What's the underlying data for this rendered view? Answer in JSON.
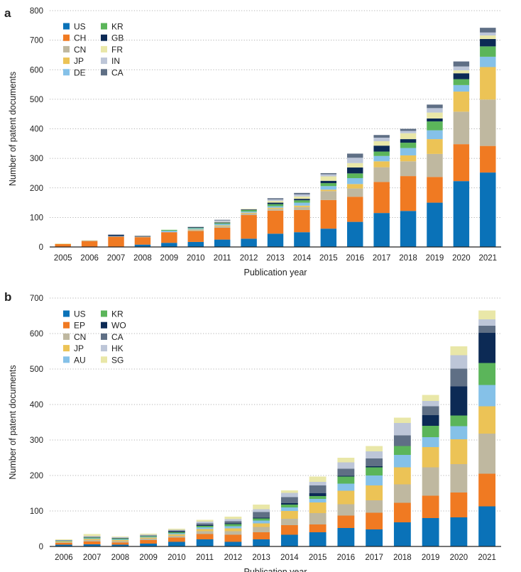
{
  "chart_data": [
    {
      "panel": "a",
      "type": "bar",
      "stacked": true,
      "xlabel": "Publication year",
      "ylabel": "Number of patent documents",
      "ylim": [
        0,
        800
      ],
      "yticks": [
        0,
        100,
        200,
        300,
        400,
        500,
        600,
        700,
        800
      ],
      "grid": "horizontal dotted",
      "legend_position": "top-left",
      "categories": [
        "2005",
        "2006",
        "2007",
        "2008",
        "2009",
        "2010",
        "2011",
        "2012",
        "2013",
        "2014",
        "2015",
        "2016",
        "2017",
        "2018",
        "2019",
        "2020",
        "2021"
      ],
      "series": [
        {
          "name": "US",
          "color": "#0a72b8",
          "values": [
            0,
            0,
            0,
            8,
            14,
            17,
            25,
            28,
            45,
            50,
            62,
            85,
            115,
            122,
            150,
            223,
            252
          ]
        },
        {
          "name": "CH",
          "color": "#f07a22",
          "values": [
            10,
            20,
            35,
            25,
            36,
            37,
            40,
            80,
            78,
            75,
            97,
            85,
            105,
            118,
            87,
            125,
            90
          ]
        },
        {
          "name": "CN",
          "color": "#bfb8a0",
          "values": [
            0,
            2,
            0,
            2,
            0,
            3,
            5,
            5,
            6,
            10,
            30,
            28,
            50,
            50,
            78,
            110,
            157
          ]
        },
        {
          "name": "JP",
          "color": "#ecc356",
          "values": [
            0,
            0,
            0,
            0,
            0,
            2,
            3,
            3,
            4,
            5,
            5,
            15,
            20,
            20,
            50,
            68,
            110
          ]
        },
        {
          "name": "DE",
          "color": "#85c1e8",
          "values": [
            0,
            0,
            2,
            0,
            5,
            4,
            5,
            4,
            5,
            10,
            12,
            20,
            18,
            25,
            30,
            22,
            35
          ]
        },
        {
          "name": "KR",
          "color": "#5bb55a",
          "values": [
            0,
            0,
            0,
            0,
            3,
            2,
            3,
            5,
            7,
            8,
            10,
            16,
            15,
            18,
            30,
            20,
            35
          ]
        },
        {
          "name": "GB",
          "color": "#0c2a55",
          "values": [
            0,
            0,
            4,
            2,
            0,
            2,
            2,
            2,
            5,
            5,
            8,
            20,
            20,
            12,
            10,
            20,
            25
          ]
        },
        {
          "name": "FR",
          "color": "#e9e7a8",
          "values": [
            2,
            1,
            0,
            1,
            0,
            0,
            2,
            2,
            6,
            8,
            15,
            15,
            15,
            20,
            20,
            10,
            12
          ]
        },
        {
          "name": "IN",
          "color": "#bdc6d8",
          "values": [
            0,
            0,
            0,
            1,
            0,
            0,
            5,
            0,
            5,
            7,
            7,
            18,
            12,
            8,
            15,
            13,
            10
          ]
        },
        {
          "name": "CA",
          "color": "#5f6f85",
          "values": [
            0,
            0,
            1,
            0,
            0,
            1,
            2,
            0,
            4,
            5,
            4,
            14,
            9,
            7,
            12,
            17,
            16
          ]
        }
      ]
    },
    {
      "panel": "b",
      "type": "bar",
      "stacked": true,
      "xlabel": "Publication year",
      "ylabel": "Number of patent documents",
      "ylim": [
        0,
        700
      ],
      "yticks": [
        0,
        100,
        200,
        300,
        400,
        500,
        600,
        700
      ],
      "grid": "horizontal dotted",
      "legend_position": "top-left",
      "categories": [
        "2006",
        "2007",
        "2008",
        "2009",
        "2010",
        "2011",
        "2012",
        "2013",
        "2014",
        "2015",
        "2016",
        "2017",
        "2018",
        "2019",
        "2020",
        "2021"
      ],
      "series": [
        {
          "name": "US",
          "color": "#0a72b8",
          "values": [
            5,
            6,
            5,
            8,
            13,
            20,
            13,
            20,
            33,
            40,
            52,
            48,
            68,
            80,
            82,
            113
          ]
        },
        {
          "name": "EP",
          "color": "#f07a22",
          "values": [
            5,
            8,
            6,
            10,
            12,
            15,
            20,
            20,
            27,
            22,
            35,
            47,
            55,
            63,
            70,
            92
          ]
        },
        {
          "name": "CN",
          "color": "#bfb8a0",
          "values": [
            2,
            4,
            4,
            4,
            5,
            8,
            10,
            15,
            18,
            32,
            32,
            35,
            52,
            80,
            80,
            113
          ]
        },
        {
          "name": "JP",
          "color": "#ecc356",
          "values": [
            2,
            3,
            3,
            3,
            4,
            6,
            8,
            10,
            22,
            30,
            38,
            42,
            48,
            57,
            70,
            77
          ]
        },
        {
          "name": "AU",
          "color": "#85c1e8",
          "values": [
            1,
            2,
            2,
            2,
            3,
            5,
            6,
            8,
            10,
            10,
            20,
            28,
            35,
            28,
            37,
            60
          ]
        },
        {
          "name": "KR",
          "color": "#5bb55a",
          "values": [
            1,
            2,
            2,
            2,
            3,
            4,
            6,
            6,
            8,
            8,
            20,
            23,
            25,
            32,
            30,
            62
          ]
        },
        {
          "name": "WO",
          "color": "#0c2a55",
          "values": [
            0,
            0,
            0,
            0,
            2,
            2,
            2,
            2,
            4,
            8,
            2,
            3,
            0,
            30,
            82,
            85
          ]
        },
        {
          "name": "CA",
          "color": "#5f6f85",
          "values": [
            1,
            2,
            2,
            2,
            3,
            5,
            6,
            16,
            17,
            22,
            20,
            22,
            30,
            25,
            50,
            20
          ]
        },
        {
          "name": "HK",
          "color": "#bdc6d8",
          "values": [
            1,
            2,
            2,
            2,
            2,
            5,
            6,
            8,
            12,
            10,
            18,
            20,
            35,
            15,
            38,
            18
          ]
        },
        {
          "name": "SG",
          "color": "#e9e7a8",
          "values": [
            2,
            6,
            2,
            3,
            3,
            5,
            7,
            13,
            7,
            15,
            13,
            15,
            15,
            17,
            25,
            25
          ]
        }
      ]
    }
  ],
  "panels": {
    "a": {
      "label": "a"
    },
    "b": {
      "label": "b"
    }
  }
}
